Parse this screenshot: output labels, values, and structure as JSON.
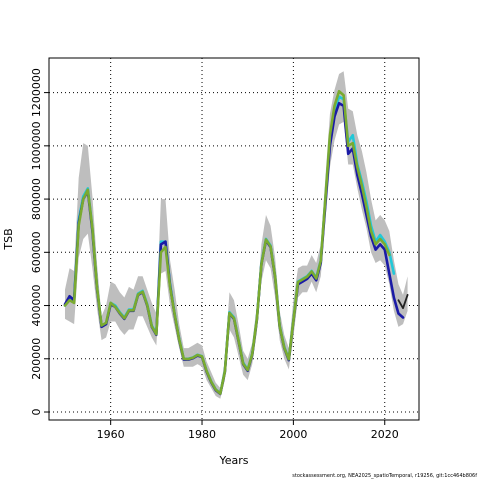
{
  "chart_data": {
    "type": "line",
    "title": "",
    "xlabel": "Years",
    "ylabel": "TSB",
    "xlim": [
      1946.5,
      2027.5
    ],
    "ylim": [
      -30000,
      1330000
    ],
    "x_ticks": [
      1960,
      1980,
      2000,
      2020
    ],
    "y_ticks": [
      0,
      200000,
      400000,
      600000,
      800000,
      1000000,
      1200000
    ],
    "grid": true,
    "grid_style": "dotted",
    "band": {
      "color": "#bebebe",
      "x": [
        1950,
        1951,
        1952,
        1953,
        1954,
        1955,
        1956,
        1957,
        1958,
        1959,
        1960,
        1961,
        1962,
        1963,
        1964,
        1965,
        1966,
        1967,
        1968,
        1969,
        1970,
        1971,
        1972,
        1973,
        1974,
        1975,
        1976,
        1977,
        1978,
        1979,
        1980,
        1981,
        1982,
        1983,
        1984,
        1985,
        1986,
        1987,
        1988,
        1989,
        1990,
        1991,
        1992,
        1993,
        1994,
        1995,
        1996,
        1997,
        1998,
        1999,
        2000,
        2001,
        2002,
        2003,
        2004,
        2005,
        2006,
        2007,
        2008,
        2009,
        2010,
        2011,
        2012,
        2013,
        2014,
        2015,
        2016,
        2017,
        2018,
        2019,
        2020,
        2021,
        2022,
        2023,
        2024,
        2025
      ],
      "upper": [
        460000,
        540000,
        530000,
        880000,
        1010000,
        1000000,
        810000,
        560000,
        360000,
        400000,
        490000,
        480000,
        450000,
        430000,
        470000,
        460000,
        510000,
        510000,
        460000,
        410000,
        370000,
        800000,
        800000,
        570000,
        460000,
        330000,
        240000,
        240000,
        250000,
        260000,
        250000,
        190000,
        150000,
        110000,
        90000,
        190000,
        450000,
        420000,
        330000,
        230000,
        200000,
        260000,
        400000,
        630000,
        740000,
        700000,
        580000,
        380000,
        290000,
        240000,
        420000,
        540000,
        550000,
        550000,
        590000,
        560000,
        630000,
        880000,
        1120000,
        1210000,
        1270000,
        1280000,
        1140000,
        1130000,
        1040000,
        980000,
        900000,
        800000,
        720000,
        740000,
        720000,
        680000,
        570000,
        480000,
        440000,
        510000
      ],
      "lower": [
        350000,
        340000,
        330000,
        580000,
        650000,
        670000,
        540000,
        390000,
        270000,
        280000,
        340000,
        340000,
        310000,
        290000,
        310000,
        310000,
        360000,
        360000,
        320000,
        280000,
        250000,
        520000,
        530000,
        400000,
        320000,
        240000,
        170000,
        170000,
        170000,
        180000,
        170000,
        120000,
        90000,
        60000,
        50000,
        120000,
        310000,
        280000,
        210000,
        140000,
        120000,
        180000,
        300000,
        490000,
        570000,
        540000,
        430000,
        270000,
        200000,
        160000,
        280000,
        430000,
        450000,
        450000,
        490000,
        450000,
        510000,
        720000,
        920000,
        1020000,
        1080000,
        1090000,
        930000,
        930000,
        840000,
        760000,
        690000,
        600000,
        560000,
        570000,
        550000,
        480000,
        380000,
        320000,
        330000,
        380000
      ]
    },
    "series": [
      {
        "color": "#22c8d8",
        "x": [
          1950,
          1951,
          1952,
          1953,
          1954,
          1955,
          1956,
          1957,
          1958,
          1959,
          1960,
          1961,
          1962,
          1963,
          1964,
          1965,
          1966,
          1967,
          1968,
          1969,
          1970,
          1971,
          1972,
          1973,
          1974,
          1975,
          1976,
          1977,
          1978,
          1979,
          1980,
          1981,
          1982,
          1983,
          1984,
          1985,
          1986,
          1987,
          1988,
          1989,
          1990,
          1991,
          1992,
          1993,
          1994,
          1995,
          1996,
          1997,
          1998,
          1999,
          2000,
          2001,
          2002,
          2003,
          2004,
          2005,
          2006,
          2007,
          2008,
          2009,
          2010,
          2011,
          2012,
          2013,
          2014,
          2015,
          2016,
          2017,
          2018,
          2019,
          2020,
          2021,
          2022
        ],
        "y": [
          400000,
          430000,
          425000,
          720000,
          810000,
          840000,
          690000,
          470000,
          325000,
          335000,
          410000,
          400000,
          375000,
          355000,
          385000,
          385000,
          445000,
          455000,
          405000,
          325000,
          295000,
          640000,
          640000,
          480000,
          370000,
          275000,
          200000,
          200000,
          205000,
          215000,
          210000,
          155000,
          115000,
          85000,
          70000,
          155000,
          375000,
          355000,
          270000,
          185000,
          160000,
          220000,
          350000,
          560000,
          650000,
          625000,
          510000,
          325000,
          245000,
          200000,
          345000,
          490000,
          500000,
          510000,
          530000,
          505000,
          570000,
          800000,
          1030000,
          1130000,
          1185000,
          1175000,
          1015000,
          1040000,
          930000,
          865000,
          790000,
          700000,
          640000,
          665000,
          640000,
          600000,
          520000
        ]
      },
      {
        "color": "#1a1aa6",
        "x": [
          1950,
          1951,
          1952,
          1953,
          1954,
          1955,
          1956,
          1957,
          1958,
          1959,
          1960,
          1961,
          1962,
          1963,
          1964,
          1965,
          1966,
          1967,
          1968,
          1969,
          1970,
          1971,
          1972,
          1973,
          1974,
          1975,
          1976,
          1977,
          1978,
          1979,
          1980,
          1981,
          1982,
          1983,
          1984,
          1985,
          1986,
          1987,
          1988,
          1989,
          1990,
          1991,
          1992,
          1993,
          1994,
          1995,
          1996,
          1997,
          1998,
          1999,
          2000,
          2001,
          2002,
          2003,
          2004,
          2005,
          2006,
          2007,
          2008,
          2009,
          2010,
          2011,
          2012,
          2013,
          2014,
          2015,
          2016,
          2017,
          2018,
          2019,
          2020,
          2021,
          2022,
          2023,
          2024
        ],
        "y": [
          405000,
          435000,
          420000,
          710000,
          800000,
          830000,
          680000,
          465000,
          320000,
          330000,
          405000,
          395000,
          370000,
          350000,
          380000,
          380000,
          440000,
          450000,
          400000,
          320000,
          290000,
          630000,
          640000,
          475000,
          365000,
          270000,
          197000,
          197000,
          202000,
          212000,
          207000,
          152000,
          112000,
          82000,
          68000,
          150000,
          370000,
          350000,
          265000,
          180000,
          155000,
          215000,
          345000,
          555000,
          645000,
          620000,
          505000,
          320000,
          240000,
          195000,
          340000,
          480000,
          490000,
          500000,
          520000,
          495000,
          560000,
          780000,
          1000000,
          1110000,
          1160000,
          1150000,
          970000,
          990000,
          890000,
          820000,
          740000,
          660000,
          610000,
          630000,
          610000,
          520000,
          430000,
          370000,
          355000
        ]
      },
      {
        "color": "#222222",
        "x": [
          2023,
          2024,
          2025
        ],
        "y": [
          420000,
          390000,
          440000
        ]
      },
      {
        "color": "#7aaa30",
        "x": [
          1950,
          1951,
          1952,
          1953,
          1954,
          1955,
          1956,
          1957,
          1958,
          1959,
          1960,
          1961,
          1962,
          1963,
          1964,
          1965,
          1966,
          1967,
          1968,
          1969,
          1970,
          1971,
          1972,
          1973,
          1974,
          1975,
          1976,
          1977,
          1978,
          1979,
          1980,
          1981,
          1982,
          1983,
          1984,
          1985,
          1986,
          1987,
          1988,
          1989,
          1990,
          1991,
          1992,
          1993,
          1994,
          1995,
          1996,
          1997,
          1998,
          1999,
          2000,
          2001,
          2002,
          2003,
          2004,
          2005,
          2006,
          2007,
          2008,
          2009,
          2010,
          2011,
          2012,
          2013,
          2014,
          2015,
          2016,
          2017,
          2018,
          2019,
          2020,
          2021
        ],
        "y": [
          400000,
          420000,
          410000,
          700000,
          800000,
          835000,
          690000,
          470000,
          325000,
          335000,
          410000,
          395000,
          372000,
          352000,
          382000,
          382000,
          442000,
          452000,
          402000,
          322000,
          292000,
          600000,
          620000,
          470000,
          368000,
          272000,
          200000,
          199000,
          204000,
          214000,
          209000,
          154000,
          114000,
          84000,
          69000,
          152000,
          372000,
          352000,
          268000,
          182000,
          158000,
          218000,
          348000,
          555000,
          648000,
          622000,
          508000,
          322000,
          242000,
          198000,
          342000,
          488000,
          498000,
          508000,
          528000,
          502000,
          568000,
          800000,
          1040000,
          1150000,
          1205000,
          1190000,
          1000000,
          1010000,
          920000,
          850000,
          770000,
          680000,
          630000,
          650000,
          630000,
          590000
        ]
      }
    ]
  },
  "footer": "stockassessment.org, NEA2025_spatioTemporal, r19256, git:1cc464b806f"
}
